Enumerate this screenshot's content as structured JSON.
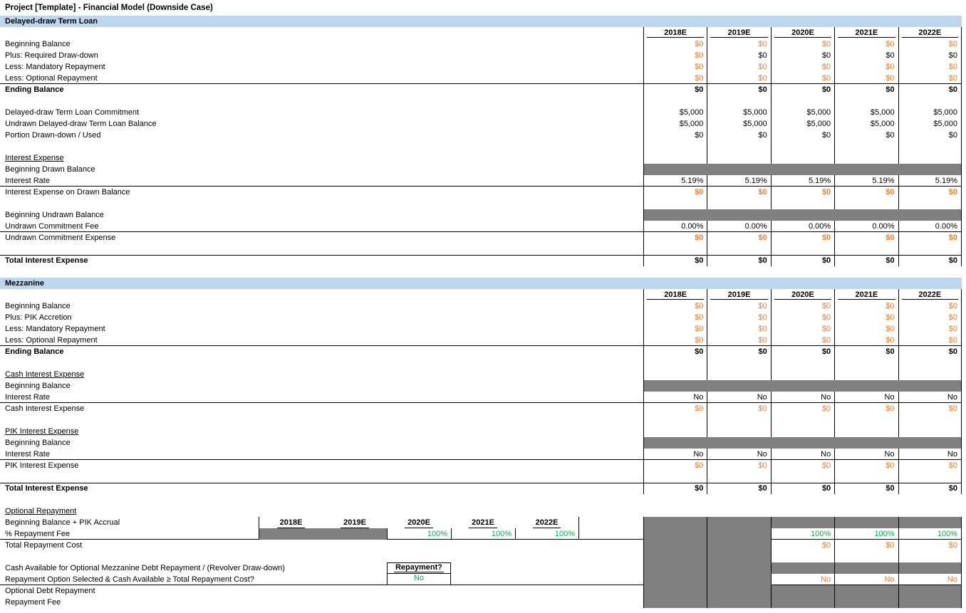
{
  "title": "Project [Template] - Financial Model (Downside Case)",
  "columns": [
    "2018E",
    "2019E",
    "2020E",
    "2021E",
    "2022E"
  ],
  "palette": {
    "orange": "#ED7D31",
    "green": "#00B050",
    "blue_bar": "#BDD7EE",
    "gray_fill": "#808080"
  },
  "loan": {
    "bar": "Delayed-draw Term Loan",
    "rows": [
      {
        "t": "header"
      },
      {
        "t": "v",
        "label": "Beginning Balance",
        "s": "o",
        "vals": [
          "$0",
          "$0",
          "$0",
          "$0",
          "$0"
        ]
      },
      {
        "t": "v",
        "label": "Plus: Required Draw-down",
        "s": "k",
        "cs": [
          "o",
          "k",
          "k",
          "k",
          "k"
        ],
        "vals": [
          "$0",
          "$0",
          "$0",
          "$0",
          "$0"
        ]
      },
      {
        "t": "v",
        "label": "Less: Mandatory Repayment",
        "s": "o",
        "vals": [
          "$0",
          "$0",
          "$0",
          "$0",
          "$0"
        ]
      },
      {
        "t": "v",
        "label": "Less: Optional Repayment",
        "s": "o",
        "vals": [
          "$0",
          "$0",
          "$0",
          "$0",
          "$0"
        ],
        "bb": 1
      },
      {
        "t": "v",
        "label": "Ending Balance",
        "ls": "b",
        "s": "kb",
        "vals": [
          "$0",
          "$0",
          "$0",
          "$0",
          "$0"
        ]
      },
      {
        "t": "blank"
      },
      {
        "t": "v",
        "label": "Delayed-draw Term Loan Commitment",
        "s": "k",
        "vals": [
          "$5,000",
          "$5,000",
          "$5,000",
          "$5,000",
          "$5,000"
        ]
      },
      {
        "t": "v",
        "label": "Undrawn Delayed-draw Term Loan Balance",
        "s": "k",
        "vals": [
          "$5,000",
          "$5,000",
          "$5,000",
          "$5,000",
          "$5,000"
        ]
      },
      {
        "t": "v",
        "label": "Portion Drawn-down / Used",
        "s": "k",
        "vals": [
          "$0",
          "$0",
          "$0",
          "$0",
          "$0"
        ]
      },
      {
        "t": "blank"
      },
      {
        "t": "blank",
        "label": "Interest Expense",
        "ls": "u"
      },
      {
        "t": "gray",
        "label": "Beginning Drawn Balance"
      },
      {
        "t": "v",
        "label": "Interest Rate",
        "s": "k",
        "vals": [
          "5.19%",
          "5.19%",
          "5.19%",
          "5.19%",
          "5.19%"
        ],
        "bb": 1
      },
      {
        "t": "v",
        "label": "Interest Expense on Drawn Balance",
        "s": "ob",
        "vals": [
          "$0",
          "$0",
          "$0",
          "$0",
          "$0"
        ]
      },
      {
        "t": "blank"
      },
      {
        "t": "gray",
        "label": "Beginning Undrawn Balance"
      },
      {
        "t": "v",
        "label": "Undrawn Commitment Fee",
        "s": "k",
        "vals": [
          "0.00%",
          "0.00%",
          "0.00%",
          "0.00%",
          "0.00%"
        ],
        "bb": 1
      },
      {
        "t": "v",
        "label": "Undrawn Commitment Expense",
        "s": "ob",
        "vals": [
          "$0",
          "$0",
          "$0",
          "$0",
          "$0"
        ]
      },
      {
        "t": "blank"
      },
      {
        "t": "v",
        "label": "Total Interest Expense",
        "ls": "b",
        "s": "kb",
        "vals": [
          "$0",
          "$0",
          "$0",
          "$0",
          "$0"
        ],
        "bt": 1
      }
    ]
  },
  "mezzanine": {
    "bar": "Mezzanine",
    "rows": [
      {
        "t": "header"
      },
      {
        "t": "v",
        "label": "Beginning Balance",
        "s": "o",
        "vals": [
          "$0",
          "$0",
          "$0",
          "$0",
          "$0"
        ]
      },
      {
        "t": "v",
        "label": "Plus: PIK Accretion",
        "s": "o",
        "vals": [
          "$0",
          "$0",
          "$0",
          "$0",
          "$0"
        ]
      },
      {
        "t": "v",
        "label": "Less: Mandatory Repayment",
        "s": "o",
        "vals": [
          "$0",
          "$0",
          "$0",
          "$0",
          "$0"
        ]
      },
      {
        "t": "v",
        "label": "Less: Optional Repayment",
        "s": "o",
        "vals": [
          "$0",
          "$0",
          "$0",
          "$0",
          "$0"
        ],
        "bb": 1
      },
      {
        "t": "v",
        "label": "Ending Balance",
        "ls": "b",
        "s": "kb",
        "vals": [
          "$0",
          "$0",
          "$0",
          "$0",
          "$0"
        ]
      },
      {
        "t": "blank"
      },
      {
        "t": "blank",
        "label": "Cash Interest Expense",
        "ls": "u"
      },
      {
        "t": "gray",
        "label": "Beginning Balance"
      },
      {
        "t": "v",
        "label": "Interest Rate",
        "s": "k",
        "vals": [
          "No",
          "No",
          "No",
          "No",
          "No"
        ],
        "bb": 1
      },
      {
        "t": "v",
        "label": "Cash Interest Expense",
        "s": "o",
        "vals": [
          "$0",
          "$0",
          "$0",
          "$0",
          "$0"
        ]
      },
      {
        "t": "blank"
      },
      {
        "t": "blank",
        "label": "PIK Interest Expense",
        "ls": "u"
      },
      {
        "t": "gray",
        "label": "Beginning Balance"
      },
      {
        "t": "v",
        "label": "Interest Rate",
        "s": "k",
        "vals": [
          "No",
          "No",
          "No",
          "No",
          "No"
        ],
        "bb": 1
      },
      {
        "t": "v",
        "label": "PIK Interest Expense",
        "s": "o",
        "vals": [
          "$0",
          "$0",
          "$0",
          "$0",
          "$0"
        ]
      },
      {
        "t": "blank"
      },
      {
        "t": "v",
        "label": "Total Interest Expense",
        "ls": "b",
        "s": "kb",
        "vals": [
          "$0",
          "$0",
          "$0",
          "$0",
          "$0"
        ],
        "bt": 1
      }
    ]
  },
  "optional": {
    "heading": "Optional Repayment",
    "rows": [
      {
        "k": "years_header",
        "label": "Beginning Balance + PIK Accrual"
      },
      {
        "k": "fee",
        "label": "% Repayment Fee",
        "mini_vals": [
          "",
          "",
          "100%",
          "100%",
          "100%"
        ],
        "right_vals": [
          "",
          "",
          "100%",
          "100%",
          "100%"
        ]
      },
      {
        "k": "cost",
        "label": "Total Repayment Cost",
        "right_vals": [
          "",
          "",
          "$0",
          "$0",
          "$0"
        ]
      },
      {
        "k": "gap"
      },
      {
        "k": "cash",
        "label": "Cash Available for Optional Mezzanine Debt Repayment / (Revolver Draw-down)",
        "box_label": "Repayment?"
      },
      {
        "k": "selected",
        "label": "Repayment Option Selected & Cash Available ≥ Total Repayment Cost?",
        "box_value": "No",
        "right_vals": [
          "",
          "",
          "No",
          "No",
          "No"
        ]
      },
      {
        "k": "grayrow",
        "label": "Optional Debt Repayment"
      },
      {
        "k": "grayrow",
        "label": "Repayment Fee"
      }
    ]
  }
}
